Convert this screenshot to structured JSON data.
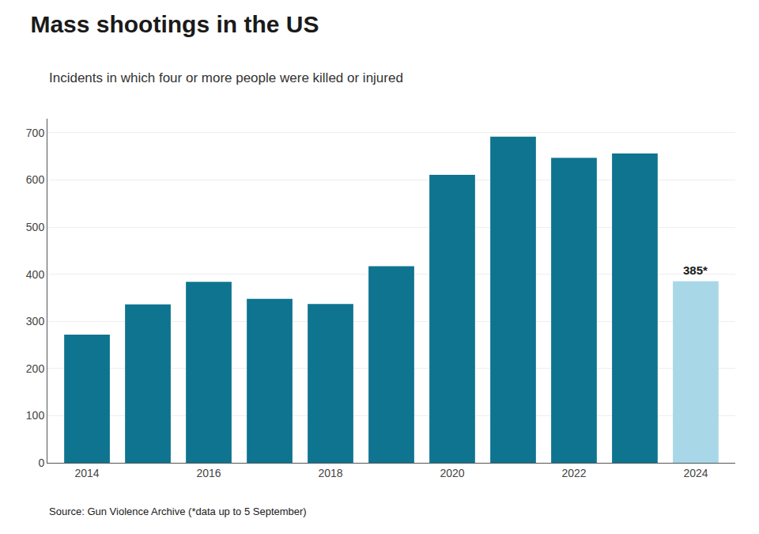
{
  "chart_data": {
    "type": "bar",
    "title": "Mass shootings in the US",
    "subtitle": "Incidents in which four or more people were killed or injured",
    "x": [
      2014,
      2015,
      2016,
      2017,
      2018,
      2019,
      2020,
      2021,
      2022,
      2023,
      2024
    ],
    "values": [
      272,
      336,
      384,
      348,
      337,
      417,
      611,
      692,
      647,
      656,
      385
    ],
    "colors": [
      "#0e7490",
      "#0e7490",
      "#0e7490",
      "#0e7490",
      "#0e7490",
      "#0e7490",
      "#0e7490",
      "#0e7490",
      "#0e7490",
      "#0e7490",
      "#a8d8e8"
    ],
    "xlim": [
      2013.35,
      2024.65
    ],
    "xticks": [
      2014,
      2016,
      2018,
      2020,
      2022,
      2024
    ],
    "ylim": [
      0,
      730
    ],
    "yticks": [
      0,
      100,
      200,
      300,
      400,
      500,
      600,
      700
    ],
    "grid": true,
    "annotations": [
      {
        "text": "385*",
        "x": 2024,
        "y": 385
      },
      {
        "text": "Source: Gun Violence Archive (*data up to 5 September)"
      }
    ]
  }
}
